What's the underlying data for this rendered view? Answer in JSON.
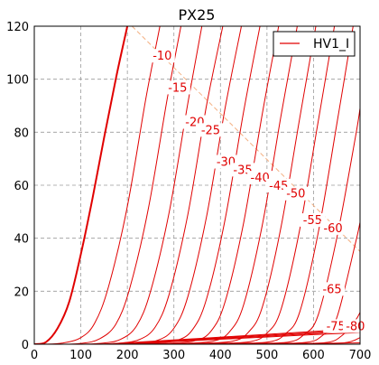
{
  "chart_data": {
    "type": "line",
    "title": "PX25",
    "xlabel": "",
    "ylabel": "",
    "xlim": [
      0,
      700
    ],
    "ylim": [
      0,
      120
    ],
    "xticks": [
      0,
      100,
      200,
      300,
      400,
      500,
      600,
      700
    ],
    "yticks": [
      0,
      20,
      40,
      60,
      80,
      100,
      120
    ],
    "grid": true,
    "legend": {
      "placement": "top-right",
      "entries": [
        "HV1_I"
      ]
    },
    "colors": {
      "curves": "#e00000",
      "load_line": "#f4b183",
      "grid": "#9a9a9a"
    },
    "series": [
      {
        "name": "HV1_I",
        "grid_voltage": 0,
        "x": [
          0,
          25,
          50,
          75,
          100,
          125,
          150,
          175,
          200
        ],
        "y": [
          0,
          0.8,
          6,
          16,
          34,
          55,
          78,
          100,
          120
        ]
      },
      {
        "grid_voltage": -5,
        "x": [
          20,
          60,
          100,
          130,
          160,
          200,
          240,
          270
        ],
        "y": [
          0,
          0.4,
          2.5,
          8,
          22,
          52,
          93,
          120
        ]
      },
      {
        "grid_voltage": -10,
        "x": [
          50,
          100,
          140,
          175,
          205,
          245,
          285,
          315
        ],
        "y": [
          0,
          0.3,
          2,
          7.5,
          21,
          51,
          92,
          120
        ]
      },
      {
        "grid_voltage": -15,
        "x": [
          80,
          140,
          185,
          220,
          250,
          290,
          330,
          360
        ],
        "y": [
          0,
          0.3,
          1.8,
          7,
          20,
          50,
          91,
          120
        ]
      },
      {
        "grid_voltage": -20,
        "x": [
          110,
          175,
          225,
          260,
          290,
          330,
          370,
          405
        ],
        "y": [
          0,
          0.3,
          1.7,
          6.5,
          19,
          49,
          90,
          120
        ]
      },
      {
        "grid_voltage": -25,
        "x": [
          140,
          210,
          265,
          300,
          330,
          370,
          410,
          445
        ],
        "y": [
          0,
          0.3,
          1.5,
          6,
          18,
          48,
          89,
          120
        ]
      },
      {
        "grid_voltage": -30,
        "x": [
          170,
          245,
          305,
          340,
          370,
          410,
          450,
          485
        ],
        "y": [
          0,
          0.3,
          1.4,
          5.5,
          17,
          47,
          88,
          120
        ]
      },
      {
        "grid_voltage": -35,
        "x": [
          200,
          280,
          345,
          380,
          410,
          450,
          490,
          525
        ],
        "y": [
          0,
          0.3,
          1.3,
          5,
          16,
          46,
          87,
          120
        ]
      },
      {
        "grid_voltage": -40,
        "x": [
          230,
          315,
          385,
          420,
          450,
          490,
          530,
          565
        ],
        "y": [
          0,
          0.3,
          1.2,
          4.8,
          15,
          45,
          86,
          120
        ]
      },
      {
        "grid_voltage": -45,
        "x": [
          260,
          350,
          425,
          460,
          490,
          530,
          570,
          605
        ],
        "y": [
          0,
          0.3,
          1.1,
          4.5,
          14,
          44,
          85,
          120
        ]
      },
      {
        "grid_voltage": -50,
        "x": [
          290,
          385,
          465,
          500,
          530,
          570,
          610,
          645
        ],
        "y": [
          0,
          0.3,
          1.0,
          4.2,
          13,
          43,
          84,
          120
        ]
      },
      {
        "grid_voltage": -55,
        "x": [
          320,
          420,
          505,
          540,
          570,
          610,
          650,
          685
        ],
        "y": [
          0,
          0.3,
          0.9,
          4,
          12,
          42,
          83,
          120
        ]
      },
      {
        "grid_voltage": -60,
        "x": [
          350,
          455,
          545,
          580,
          610,
          650,
          690,
          700
        ],
        "y": [
          0,
          0.3,
          0.8,
          3.7,
          11,
          40,
          78,
          89
        ]
      },
      {
        "grid_voltage": -65,
        "x": [
          380,
          490,
          585,
          620,
          650,
          690,
          700
        ],
        "y": [
          0,
          0.3,
          0.7,
          3.4,
          10,
          38,
          46
        ]
      },
      {
        "grid_voltage": -70,
        "x": [
          410,
          525,
          625,
          660,
          690,
          700
        ],
        "y": [
          0,
          0.3,
          0.6,
          3.1,
          9,
          12
        ]
      },
      {
        "grid_voltage": -75,
        "x": [
          440,
          560,
          665,
          700
        ],
        "y": [
          0,
          0.3,
          0.5,
          2.5
        ]
      },
      {
        "grid_voltage": -80,
        "x": [
          470,
          595,
          700
        ],
        "y": [
          0,
          0.3,
          0.5
        ]
      },
      {
        "grid_voltage": -85,
        "x": [
          150,
          300,
          450,
          600,
          700
        ],
        "y": [
          0,
          1.6,
          3.2,
          4.8,
          6.2
        ]
      },
      {
        "grid_voltage": -90,
        "x": [
          160,
          300,
          450,
          600,
          700
        ],
        "y": [
          0,
          1.4,
          2.9,
          4.4,
          5.6
        ]
      },
      {
        "grid_voltage": -95,
        "x": [
          170,
          300,
          450,
          600,
          700
        ],
        "y": [
          0,
          1.2,
          2.6,
          4.0,
          5.0
        ]
      },
      {
        "grid_voltage": -100,
        "x": [
          180,
          300,
          450,
          600,
          700
        ],
        "y": [
          0,
          1.0,
          2.3,
          3.6,
          4.4
        ]
      }
    ],
    "load_line": {
      "x": [
        210,
        700
      ],
      "y": [
        120,
        35
      ]
    },
    "annotations": [
      {
        "text": "-10",
        "x": 275,
        "y": 108
      },
      {
        "text": "-15",
        "x": 308,
        "y": 96
      },
      {
        "text": "-20",
        "x": 345,
        "y": 83
      },
      {
        "text": "-25",
        "x": 379,
        "y": 80
      },
      {
        "text": "-30",
        "x": 412,
        "y": 68
      },
      {
        "text": "-35",
        "x": 448,
        "y": 65
      },
      {
        "text": "-40",
        "x": 485,
        "y": 62
      },
      {
        "text": "-45",
        "x": 525,
        "y": 59
      },
      {
        "text": "-50",
        "x": 562,
        "y": 56
      },
      {
        "text": "-55",
        "x": 598,
        "y": 46
      },
      {
        "text": "-60",
        "x": 642,
        "y": 43
      },
      {
        "text": "-65",
        "x": 640,
        "y": 20
      },
      {
        "text": "-75",
        "x": 648,
        "y": 6
      },
      {
        "text": "-80",
        "x": 690,
        "y": 6
      }
    ]
  }
}
